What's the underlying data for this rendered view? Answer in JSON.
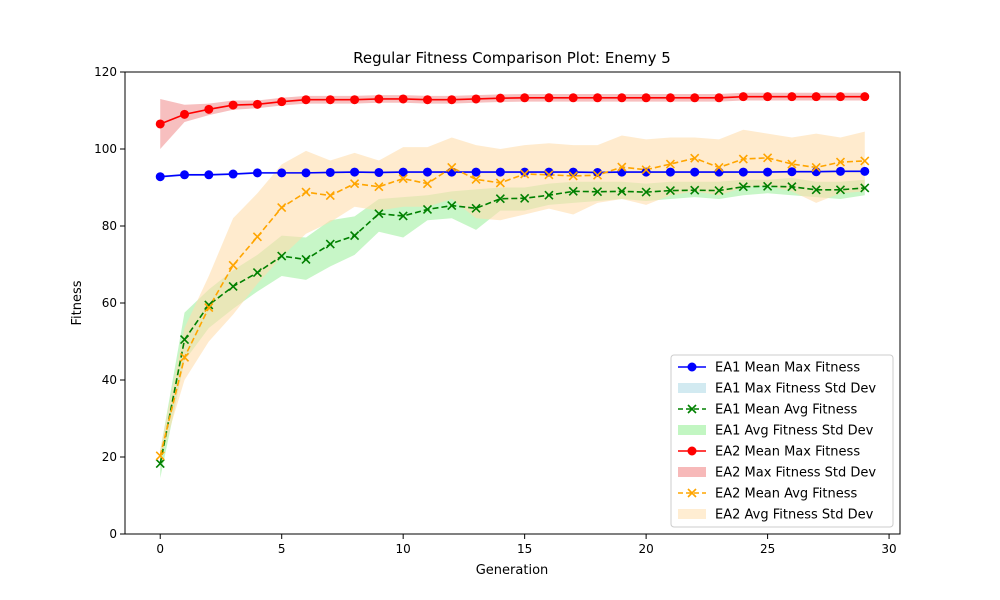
{
  "chart_data": {
    "type": "line",
    "title": "Regular Fitness Comparison Plot: Enemy 5",
    "xlabel": "Generation",
    "ylabel": "Fitness",
    "xlim": [
      -1.45,
      30.45
    ],
    "ylim": [
      0,
      120
    ],
    "xticks": [
      0,
      5,
      10,
      15,
      20,
      25,
      30
    ],
    "yticks": [
      0,
      20,
      40,
      60,
      80,
      100,
      120
    ],
    "grid": false,
    "legend_position": "lower-right",
    "x": [
      0,
      1,
      2,
      3,
      4,
      5,
      6,
      7,
      8,
      9,
      10,
      11,
      12,
      13,
      14,
      15,
      16,
      17,
      18,
      19,
      20,
      21,
      22,
      23,
      24,
      25,
      26,
      27,
      28,
      29
    ],
    "series": [
      {
        "name": "EA1 Mean Max Fitness",
        "kind": "line",
        "color": "#0000ff",
        "marker": "circle",
        "linestyle": "solid",
        "values": [
          92.8,
          93.3,
          93.3,
          93.5,
          93.8,
          93.8,
          93.8,
          93.9,
          94.0,
          93.9,
          94.0,
          94.0,
          94.0,
          94.0,
          94.0,
          94.0,
          94.0,
          94.0,
          93.9,
          94.0,
          94.0,
          94.0,
          94.0,
          94.0,
          94.0,
          94.0,
          94.1,
          94.1,
          94.2,
          94.2
        ]
      },
      {
        "name": "EA1 Max Fitness Std Dev",
        "kind": "band",
        "color": "#add8e6",
        "opacity": 0.5,
        "lower": [
          92.5,
          93.0,
          93.0,
          93.2,
          93.5,
          93.5,
          93.5,
          93.6,
          93.7,
          93.6,
          93.7,
          93.7,
          93.7,
          93.7,
          93.7,
          93.7,
          93.7,
          93.7,
          93.6,
          93.7,
          93.7,
          93.7,
          93.7,
          93.7,
          93.7,
          93.7,
          93.8,
          93.8,
          93.9,
          93.9
        ],
        "upper": [
          93.1,
          93.6,
          93.6,
          93.8,
          94.1,
          94.1,
          94.1,
          94.2,
          94.3,
          94.2,
          94.3,
          94.3,
          94.3,
          94.3,
          94.3,
          94.3,
          94.3,
          94.3,
          94.2,
          94.3,
          94.3,
          94.3,
          94.3,
          94.3,
          94.3,
          94.3,
          94.4,
          94.4,
          94.5,
          94.5
        ]
      },
      {
        "name": "EA1 Mean Avg Fitness",
        "kind": "line",
        "color": "#008000",
        "marker": "x",
        "linestyle": "dashed",
        "values": [
          18.3,
          50.5,
          59.5,
          64.3,
          67.9,
          72.2,
          71.3,
          75.3,
          77.5,
          83.2,
          82.6,
          84.3,
          85.3,
          84.6,
          87.1,
          87.2,
          88.0,
          89.0,
          88.9,
          89.0,
          88.8,
          89.2,
          89.3,
          89.2,
          90.2,
          90.3,
          90.2,
          89.4,
          89.4,
          89.9
        ]
      },
      {
        "name": "EA1 Avg Fitness Std Dev",
        "kind": "band",
        "color": "#90ee90",
        "opacity": 0.5,
        "lower": [
          14.5,
          45.0,
          53.5,
          58.5,
          63.0,
          67.0,
          66.0,
          69.5,
          72.5,
          78.5,
          77.0,
          81.5,
          82.0,
          79.0,
          84.0,
          84.0,
          85.5,
          86.0,
          86.5,
          87.0,
          86.5,
          87.0,
          87.5,
          87.0,
          88.0,
          88.5,
          88.0,
          87.5,
          87.0,
          88.0
        ],
        "upper": [
          21.5,
          57.5,
          63.5,
          68.5,
          72.5,
          77.5,
          77.0,
          81.5,
          82.5,
          87.0,
          87.5,
          88.0,
          89.0,
          89.5,
          90.0,
          90.0,
          91.0,
          91.5,
          91.5,
          91.5,
          91.0,
          91.5,
          91.5,
          91.5,
          92.0,
          92.0,
          92.5,
          91.5,
          91.5,
          92.0
        ]
      },
      {
        "name": "EA2 Mean Max Fitness",
        "kind": "line",
        "color": "#ff0000",
        "marker": "circle",
        "linestyle": "solid",
        "values": [
          106.5,
          109.0,
          110.3,
          111.4,
          111.6,
          112.3,
          112.8,
          112.8,
          112.8,
          113.0,
          113.0,
          112.8,
          112.8,
          113.0,
          113.2,
          113.3,
          113.3,
          113.3,
          113.3,
          113.3,
          113.3,
          113.3,
          113.3,
          113.3,
          113.6,
          113.6,
          113.6,
          113.6,
          113.6,
          113.6
        ]
      },
      {
        "name": "EA2 Max Fitness Std Dev",
        "kind": "band",
        "color": "#f08080",
        "opacity": 0.5,
        "lower": [
          100.0,
          107.0,
          108.8,
          110.2,
          110.6,
          111.3,
          111.8,
          111.8,
          111.8,
          112.0,
          112.0,
          111.8,
          111.8,
          112.0,
          112.2,
          112.3,
          112.3,
          112.3,
          112.3,
          112.3,
          112.3,
          112.3,
          112.3,
          112.3,
          112.6,
          112.6,
          112.6,
          112.6,
          112.6,
          112.6
        ],
        "upper": [
          113.0,
          111.5,
          111.8,
          112.6,
          112.6,
          113.3,
          113.8,
          113.8,
          113.8,
          114.0,
          114.0,
          113.8,
          113.8,
          114.0,
          114.2,
          114.3,
          114.3,
          114.3,
          114.3,
          114.3,
          114.3,
          114.3,
          114.3,
          114.3,
          114.6,
          114.6,
          114.6,
          114.6,
          114.6,
          114.6
        ]
      },
      {
        "name": "EA2 Mean Avg Fitness",
        "kind": "line",
        "color": "#ffa500",
        "marker": "x",
        "linestyle": "dashed",
        "values": [
          20.3,
          45.9,
          58.8,
          69.8,
          77.2,
          84.8,
          88.8,
          87.9,
          91.0,
          90.2,
          92.3,
          91.0,
          95.2,
          92.1,
          91.2,
          93.5,
          93.3,
          93.0,
          93.2,
          95.3,
          94.6,
          96.1,
          97.6,
          95.2,
          97.4,
          97.7,
          96.1,
          95.2,
          96.6,
          96.9
        ]
      },
      {
        "name": "EA2 Avg Fitness Std Dev",
        "kind": "band",
        "color": "#ffdead",
        "opacity": 0.6,
        "lower": [
          19.0,
          40.0,
          50.0,
          57.0,
          65.0,
          72.0,
          78.0,
          81.0,
          85.0,
          84.0,
          85.0,
          85.0,
          87.0,
          82.0,
          81.5,
          83.0,
          84.5,
          83.0,
          86.0,
          87.0,
          85.5,
          88.0,
          89.0,
          88.0,
          90.0,
          90.5,
          89.0,
          86.0,
          88.5,
          89.0
        ],
        "upper": [
          22.0,
          53.5,
          67.0,
          82.0,
          88.5,
          96.0,
          99.5,
          97.0,
          99.0,
          97.0,
          100.5,
          100.5,
          103.0,
          101.0,
          100.0,
          101.0,
          101.5,
          101.0,
          101.0,
          103.5,
          102.5,
          103.0,
          103.0,
          102.5,
          105.0,
          104.0,
          103.0,
          104.0,
          103.0,
          104.5
        ]
      }
    ],
    "legend": [
      {
        "label": "EA1 Mean Max Fitness",
        "kind": "line",
        "color": "#0000ff",
        "marker": "circle",
        "linestyle": "solid"
      },
      {
        "label": "EA1 Max Fitness Std Dev",
        "kind": "band",
        "color": "#add8e6"
      },
      {
        "label": "EA1 Mean Avg Fitness",
        "kind": "line",
        "color": "#008000",
        "marker": "x",
        "linestyle": "dashed"
      },
      {
        "label": "EA1 Avg Fitness Std Dev",
        "kind": "band",
        "color": "#90ee90"
      },
      {
        "label": "EA2 Mean Max Fitness",
        "kind": "line",
        "color": "#ff0000",
        "marker": "circle",
        "linestyle": "solid"
      },
      {
        "label": "EA2 Max Fitness Std Dev",
        "kind": "band",
        "color": "#f08080"
      },
      {
        "label": "EA2 Mean Avg Fitness",
        "kind": "line",
        "color": "#ffa500",
        "marker": "x",
        "linestyle": "dashed"
      },
      {
        "label": "EA2 Avg Fitness Std Dev",
        "kind": "band",
        "color": "#ffdead"
      }
    ]
  }
}
